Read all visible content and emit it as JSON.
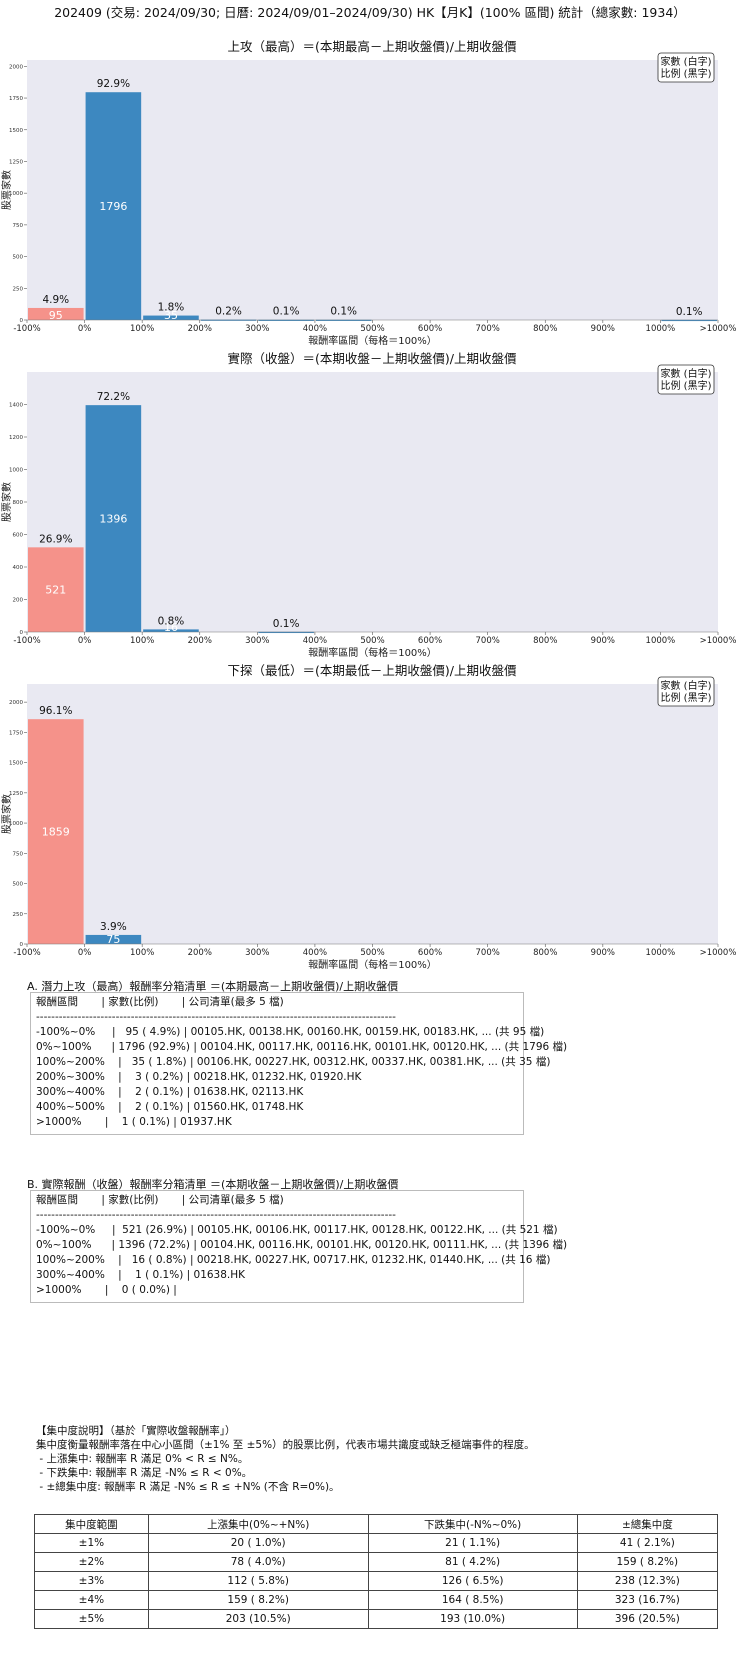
{
  "page_title": "202409 (交易: 2024/09/30; 日曆: 2024/09/01–2024/09/30) HK【月K】(100% 區間) 統計（總家數: 1934）",
  "legend": {
    "line1": "家數 (白字)",
    "line2": "比例 (黑字)"
  },
  "colors": {
    "plot_bg": "#e9e9f2",
    "negative_bar": "#f5928a",
    "positive_bar": "#3d88c0"
  },
  "chart_data": [
    {
      "type": "bar",
      "title": "上攻（最高）＝(本期最高－上期收盤價)/上期收盤價",
      "xlabel": "報酬率區間（每格＝100%）",
      "ylabel": "股票家數",
      "categories": [
        "-100%~0%",
        "0%~100%",
        "100%~200%",
        "200%~300%",
        "300%~400%",
        "400%~500%",
        "500%~600%",
        "600%~700%",
        "700%~800%",
        "800%~900%",
        "900%~1000%",
        ">1000%"
      ],
      "x_ticks": [
        "-100%",
        "0%",
        "100%",
        "200%",
        "300%",
        "400%",
        "500%",
        "600%",
        "700%",
        "800%",
        "900%",
        "1000%",
        ">1000%"
      ],
      "values": [
        95,
        1796,
        35,
        3,
        2,
        2,
        0,
        0,
        0,
        0,
        0,
        1
      ],
      "value_labels": [
        "95",
        "1796",
        "35",
        "",
        "",
        "",
        "",
        "",
        "",
        "",
        "",
        ""
      ],
      "percent_labels": [
        "4.9%",
        "92.9%",
        "1.8%",
        "0.2%",
        "0.1%",
        "0.1%",
        "",
        "",
        "",
        "",
        "",
        "0.1%"
      ],
      "yticks": [
        0,
        250,
        500,
        750,
        1000,
        1250,
        1500,
        1750,
        2000
      ],
      "ylim": [
        0,
        2050
      ],
      "legend_position": "top-right",
      "grid": false
    },
    {
      "type": "bar",
      "title": "實際（收盤）＝(本期收盤－上期收盤價)/上期收盤價",
      "xlabel": "報酬率區間（每格＝100%）",
      "ylabel": "股票家數",
      "categories": [
        "-100%~0%",
        "0%~100%",
        "100%~200%",
        "200%~300%",
        "300%~400%",
        "400%~500%",
        "500%~600%",
        "600%~700%",
        "700%~800%",
        "800%~900%",
        "900%~1000%",
        ">1000%"
      ],
      "x_ticks": [
        "-100%",
        "0%",
        "100%",
        "200%",
        "300%",
        "400%",
        "500%",
        "600%",
        "700%",
        "800%",
        "900%",
        "1000%",
        ">1000%"
      ],
      "values": [
        521,
        1396,
        16,
        0,
        1,
        0,
        0,
        0,
        0,
        0,
        0,
        0
      ],
      "value_labels": [
        "521",
        "1396",
        "16",
        "",
        "",
        "",
        "",
        "",
        "",
        "",
        "",
        ""
      ],
      "percent_labels": [
        "26.9%",
        "72.2%",
        "0.8%",
        "",
        "0.1%",
        "",
        "",
        "",
        "",
        "",
        "",
        ""
      ],
      "yticks": [
        0,
        200,
        400,
        600,
        800,
        1000,
        1200,
        1400
      ],
      "ylim": [
        0,
        1600
      ],
      "legend_position": "top-right",
      "grid": false
    },
    {
      "type": "bar",
      "title": "下探（最低）＝(本期最低－上期收盤價)/上期收盤價",
      "xlabel": "報酬率區間（每格＝100%）",
      "ylabel": "股票家數",
      "categories": [
        "-100%~0%",
        "0%~100%",
        "100%~200%",
        "200%~300%",
        "300%~400%",
        "400%~500%",
        "500%~600%",
        "600%~700%",
        "700%~800%",
        "800%~900%",
        "900%~1000%",
        ">1000%"
      ],
      "x_ticks": [
        "-100%",
        "0%",
        "100%",
        "200%",
        "300%",
        "400%",
        "500%",
        "600%",
        "700%",
        "800%",
        "900%",
        "1000%",
        ">1000%"
      ],
      "values": [
        1859,
        75,
        0,
        0,
        0,
        0,
        0,
        0,
        0,
        0,
        0,
        0
      ],
      "value_labels": [
        "1859",
        "75",
        "",
        "",
        "",
        "",
        "",
        "",
        "",
        "",
        "",
        ""
      ],
      "percent_labels": [
        "96.1%",
        "3.9%",
        "",
        "",
        "",
        "",
        "",
        "",
        "",
        "",
        "",
        ""
      ],
      "yticks": [
        0,
        250,
        500,
        750,
        1000,
        1250,
        1500,
        1750,
        2000
      ],
      "ylim": [
        0,
        2150
      ],
      "legend_position": "top-right",
      "grid": false
    }
  ],
  "list_a": {
    "title": "A. 潛力上攻（最高）報酬率分箱清單 ＝(本期最高－上期收盤價)/上期收盤價",
    "lines": [
      "報酬區間       | 家數(比例)       | 公司清單(最多 5 檔)",
      "-----------------------------------------------------------------------------------------------",
      "-100%~0%     |   95 ( 4.9%) | 00105.HK, 00138.HK, 00160.HK, 00159.HK, 00183.HK, ... (共 95 檔)",
      "0%~100%      | 1796 (92.9%) | 00104.HK, 00117.HK, 00116.HK, 00101.HK, 00120.HK, ... (共 1796 檔)",
      "100%~200%    |   35 ( 1.8%) | 00106.HK, 00227.HK, 00312.HK, 00337.HK, 00381.HK, ... (共 35 檔)",
      "200%~300%    |    3 ( 0.2%) | 00218.HK, 01232.HK, 01920.HK",
      "300%~400%    |    2 ( 0.1%) | 01638.HK, 02113.HK",
      "400%~500%    |    2 ( 0.1%) | 01560.HK, 01748.HK",
      ">1000%       |    1 ( 0.1%) | 01937.HK"
    ]
  },
  "list_b": {
    "title": "B. 實際報酬（收盤）報酬率分箱清單 ＝(本期收盤－上期收盤價)/上期收盤價",
    "lines": [
      "報酬區間       | 家數(比例)       | 公司清單(最多 5 檔)",
      "-----------------------------------------------------------------------------------------------",
      "-100%~0%     |  521 (26.9%) | 00105.HK, 00106.HK, 00117.HK, 00128.HK, 00122.HK, ... (共 521 檔)",
      "0%~100%      | 1396 (72.2%) | 00104.HK, 00116.HK, 00101.HK, 00120.HK, 00111.HK, ... (共 1396 檔)",
      "100%~200%    |   16 ( 0.8%) | 00218.HK, 00227.HK, 00717.HK, 01232.HK, 01440.HK, ... (共 16 檔)",
      "300%~400%    |    1 ( 0.1%) | 01638.HK",
      ">1000%       |    0 ( 0.0%) |"
    ]
  },
  "note": {
    "lines": [
      "【集中度說明】（基於「實際收盤報酬率」）",
      "集中度衡量報酬率落在中心小區間（±1% 至 ±5%）的股票比例，代表市場共識度或缺乏極端事件的程度。",
      " - 上漲集中: 報酬率 R 滿足 0% < R ≤ N%。",
      " - 下跌集中: 報酬率 R 滿足 -N% ≤ R < 0%。",
      " - ±總集中度: 報酬率 R 滿足 -N% ≤ R ≤ +N% (不含 R=0%)。"
    ]
  },
  "concentration_table": {
    "headers": [
      "集中度範圍",
      "上漲集中(0%~+N%)",
      "下跌集中(-N%~0%)",
      "±總集中度"
    ],
    "rows": [
      [
        "±1%",
        "20 ( 1.0%)",
        "21 ( 1.1%)",
        "41 ( 2.1%)"
      ],
      [
        "±2%",
        "78 ( 4.0%)",
        "81 ( 4.2%)",
        "159 ( 8.2%)"
      ],
      [
        "±3%",
        "112 ( 5.8%)",
        "126 ( 6.5%)",
        "238 (12.3%)"
      ],
      [
        "±4%",
        "159 ( 8.2%)",
        "164 ( 8.5%)",
        "323 (16.7%)"
      ],
      [
        "±5%",
        "203 (10.5%)",
        "193 (10.0%)",
        "396 (20.5%)"
      ]
    ]
  }
}
